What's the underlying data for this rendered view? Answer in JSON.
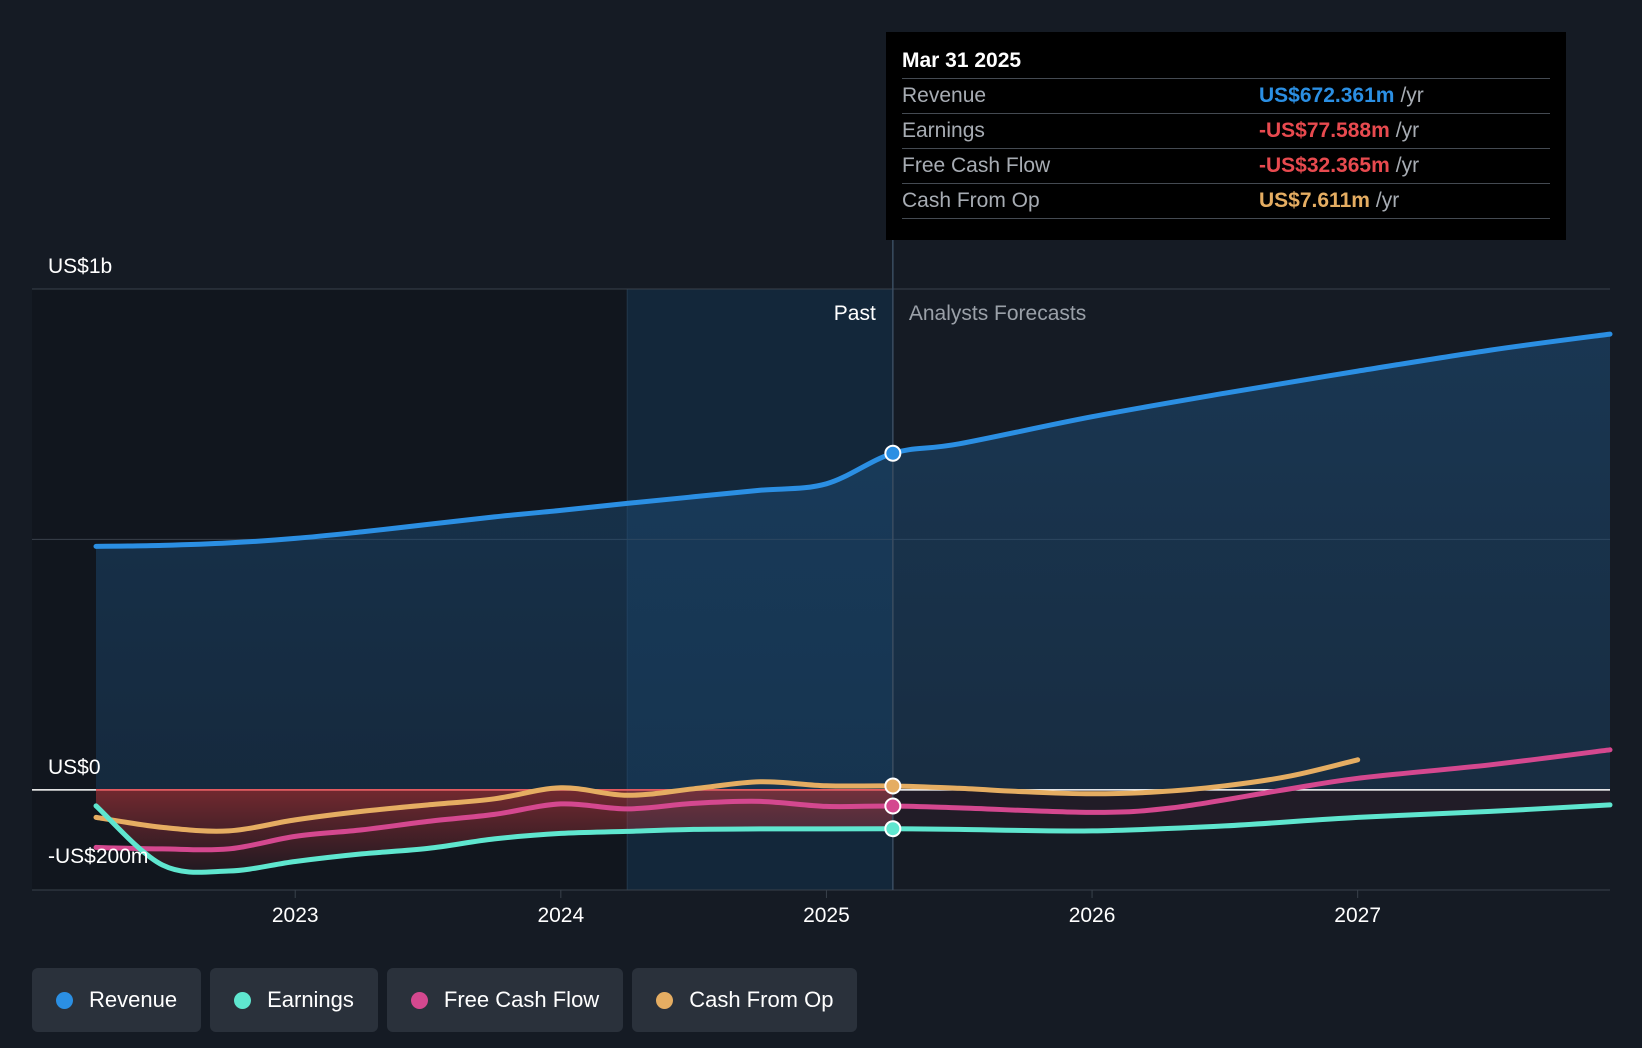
{
  "chart_data": {
    "type": "line",
    "x_unit": "year",
    "xlim": [
      2022.25,
      2027.95
    ],
    "ylim": [
      -200,
      1000
    ],
    "y_tick_labels": [
      {
        "value": 1000,
        "label": "US$1b"
      },
      {
        "value": 0,
        "label": "US$0"
      },
      {
        "value": -200,
        "label": "-US$200m"
      }
    ],
    "x_tick_labels": [
      {
        "value": 2023,
        "label": "2023"
      },
      {
        "value": 2024,
        "label": "2024"
      },
      {
        "value": 2025,
        "label": "2025"
      },
      {
        "value": 2026,
        "label": "2026"
      },
      {
        "value": 2027,
        "label": "2027"
      }
    ],
    "past_label": "Past",
    "forecast_label": "Analysts Forecasts",
    "present_x": 2025.25,
    "highlight_x_start": 2024.25,
    "series": [
      {
        "name": "Revenue",
        "color": "#2b8fe3",
        "points": [
          [
            2022.25,
            486
          ],
          [
            2022.5,
            488
          ],
          [
            2022.75,
            493
          ],
          [
            2023.0,
            502
          ],
          [
            2023.25,
            515
          ],
          [
            2023.5,
            530
          ],
          [
            2023.75,
            545
          ],
          [
            2024.0,
            558
          ],
          [
            2024.25,
            572
          ],
          [
            2024.5,
            585
          ],
          [
            2024.75,
            598
          ],
          [
            2025.0,
            611
          ],
          [
            2025.25,
            672
          ],
          [
            2025.5,
            691
          ],
          [
            2026.0,
            745
          ],
          [
            2026.5,
            792
          ],
          [
            2027.0,
            836
          ],
          [
            2027.5,
            878
          ],
          [
            2027.95,
            910
          ]
        ]
      },
      {
        "name": "Earnings",
        "color": "#5fe6cf",
        "points": [
          [
            2022.25,
            -32
          ],
          [
            2022.5,
            -150
          ],
          [
            2022.75,
            -162
          ],
          [
            2023.0,
            -143
          ],
          [
            2023.25,
            -128
          ],
          [
            2023.5,
            -117
          ],
          [
            2023.75,
            -98
          ],
          [
            2024.0,
            -87
          ],
          [
            2024.25,
            -83
          ],
          [
            2024.5,
            -79
          ],
          [
            2024.75,
            -78
          ],
          [
            2025.0,
            -78
          ],
          [
            2025.25,
            -77.588
          ],
          [
            2025.5,
            -79
          ],
          [
            2026.0,
            -82
          ],
          [
            2026.5,
            -72
          ],
          [
            2027.0,
            -55
          ],
          [
            2027.5,
            -43
          ],
          [
            2027.95,
            -30
          ]
        ]
      },
      {
        "name": "Free Cash Flow",
        "color": "#d4488f",
        "points": [
          [
            2022.25,
            -115
          ],
          [
            2022.5,
            -118
          ],
          [
            2022.75,
            -118
          ],
          [
            2023.0,
            -93
          ],
          [
            2023.25,
            -80
          ],
          [
            2023.5,
            -63
          ],
          [
            2023.75,
            -49
          ],
          [
            2024.0,
            -28
          ],
          [
            2024.25,
            -38
          ],
          [
            2024.5,
            -27
          ],
          [
            2024.75,
            -23
          ],
          [
            2025.0,
            -33
          ],
          [
            2025.25,
            -32.365
          ],
          [
            2025.5,
            -36
          ],
          [
            2026.0,
            -45
          ],
          [
            2026.3,
            -36
          ],
          [
            2026.7,
            -2
          ],
          [
            2027.0,
            23
          ],
          [
            2027.5,
            50
          ],
          [
            2027.95,
            80
          ]
        ]
      },
      {
        "name": "Cash From Op",
        "color": "#e5ad62",
        "points": [
          [
            2022.25,
            -55
          ],
          [
            2022.5,
            -75
          ],
          [
            2022.75,
            -82
          ],
          [
            2023.0,
            -60
          ],
          [
            2023.25,
            -43
          ],
          [
            2023.5,
            -30
          ],
          [
            2023.75,
            -18
          ],
          [
            2024.0,
            4
          ],
          [
            2024.25,
            -11
          ],
          [
            2024.5,
            2
          ],
          [
            2024.75,
            16
          ],
          [
            2025.0,
            8
          ],
          [
            2025.25,
            7.611
          ],
          [
            2025.5,
            3
          ],
          [
            2025.75,
            -4
          ],
          [
            2026.0,
            -8
          ],
          [
            2026.25,
            -4
          ],
          [
            2026.5,
            8
          ],
          [
            2026.75,
            28
          ],
          [
            2027.0,
            60
          ]
        ]
      }
    ]
  },
  "tooltip": {
    "date": "Mar 31 2025",
    "rows": [
      {
        "label": "Revenue",
        "value": "US$672.361m",
        "unit": "/yr",
        "color": "#2b8fe3"
      },
      {
        "label": "Earnings",
        "value": "-US$77.588m",
        "unit": "/yr",
        "color": "#e84a4f"
      },
      {
        "label": "Free Cash Flow",
        "value": "-US$32.365m",
        "unit": "/yr",
        "color": "#e84a4f"
      },
      {
        "label": "Cash From Op",
        "value": "US$7.611m",
        "unit": "/yr",
        "color": "#e5ad62"
      }
    ]
  },
  "legend": [
    {
      "label": "Revenue",
      "color": "#2b8fe3"
    },
    {
      "label": "Earnings",
      "color": "#5fe6cf"
    },
    {
      "label": "Free Cash Flow",
      "color": "#d4488f"
    },
    {
      "label": "Cash From Op",
      "color": "#e5ad62"
    }
  ]
}
